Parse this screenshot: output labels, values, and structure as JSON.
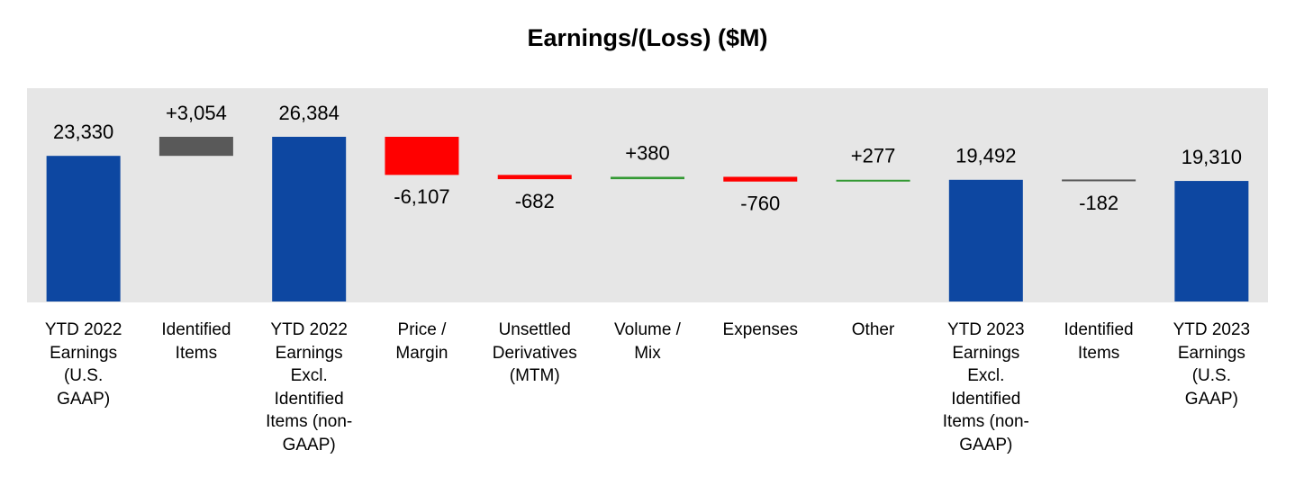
{
  "chart_data": {
    "type": "waterfall",
    "title": "Earnings/(Loss) ($M)",
    "categories": [
      "YTD 2022 Earnings (U.S. GAAP)",
      "Identified Items",
      "YTD 2022 Earnings Excl. Identified Items (non-GAAP)",
      "Price / Margin",
      "Unsettled Derivatives (MTM)",
      "Volume / Mix",
      "Expenses",
      "Other",
      "YTD 2023 Earnings Excl. Identified Items (non-GAAP)",
      "Identified Items",
      "YTD 2023 Earnings (U.S. GAAP)"
    ],
    "measure": [
      "absolute",
      "relative",
      "absolute",
      "relative",
      "relative",
      "relative",
      "relative",
      "relative",
      "absolute",
      "relative",
      "absolute"
    ],
    "values": [
      23330,
      3054,
      26384,
      -6107,
      -682,
      380,
      -760,
      277,
      19492,
      -182,
      19310
    ],
    "value_labels": [
      "23,330",
      "+3,054",
      "26,384",
      "-6,107",
      "-682",
      "+380",
      "-760",
      "+277",
      "19,492",
      "-182",
      "19,310"
    ],
    "colors": [
      "#0d47a1",
      "#595959",
      "#0d47a1",
      "#ff0000",
      "#ff0000",
      "#339933",
      "#ff0000",
      "#339933",
      "#0d47a1",
      "#595959",
      "#0d47a1"
    ]
  }
}
